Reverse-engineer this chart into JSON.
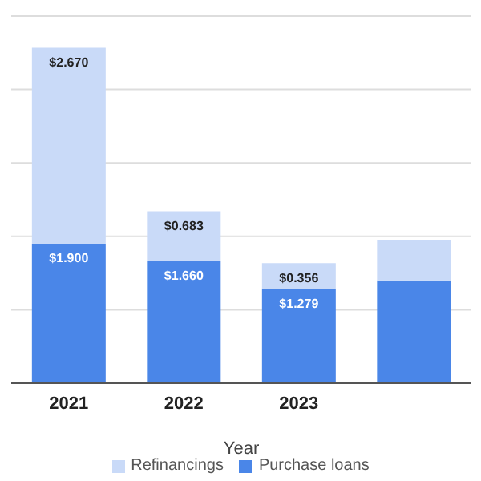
{
  "chart_data": {
    "type": "bar",
    "stacked": true,
    "xlabel": "Year",
    "categories": [
      "2021",
      "2022",
      "2023",
      null
    ],
    "series": [
      {
        "name": "Purchase loans",
        "color": "#4a86e8",
        "values": [
          1.9,
          1.66,
          1.279,
          1.4
        ],
        "value_labels": [
          "$1.900",
          "$1.660",
          "$1.279",
          null
        ]
      },
      {
        "name": "Refinancings",
        "color": "#c9daf8",
        "values": [
          2.67,
          0.683,
          0.356,
          0.55
        ],
        "value_labels": [
          "$2.670",
          "$0.683",
          "$0.356",
          null
        ]
      }
    ],
    "ylim": [
      0,
      5
    ],
    "yticks": [
      0,
      1,
      2,
      3,
      4,
      5
    ],
    "grid": "y",
    "tick_labels": "x",
    "legend": "bottom"
  }
}
